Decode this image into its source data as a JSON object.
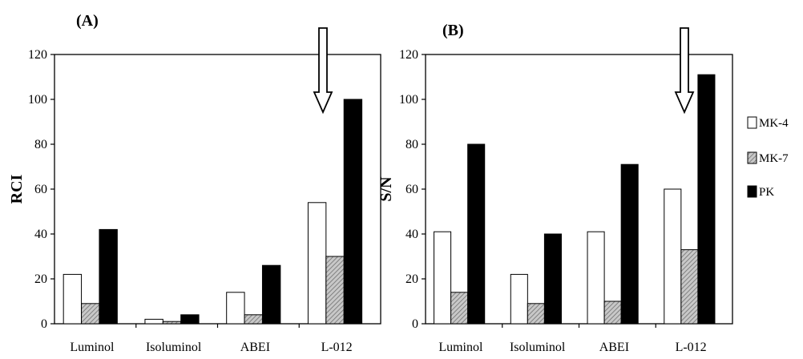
{
  "chart_data": [
    {
      "type": "bar",
      "panel_label": "(A)",
      "ylabel": "RCI",
      "xlabel": "",
      "ylim": [
        0,
        120
      ],
      "yticks": [
        "0",
        "20",
        "40",
        "60",
        "80",
        "100",
        "120"
      ],
      "categories": [
        "Luminol",
        "Isoluminol",
        "ABEI",
        "L-012"
      ],
      "series": [
        {
          "name": "MK-4",
          "values": [
            22,
            2,
            14,
            54
          ]
        },
        {
          "name": "MK-7",
          "values": [
            9,
            1,
            4,
            30
          ]
        },
        {
          "name": "PK",
          "values": [
            42,
            4,
            26,
            100
          ]
        }
      ],
      "annotation": "arrow pointing down at L-012",
      "grid": false
    },
    {
      "type": "bar",
      "panel_label": "(B)",
      "ylabel": "S/N",
      "xlabel": "",
      "ylim": [
        0,
        120
      ],
      "yticks": [
        "0",
        "20",
        "40",
        "60",
        "80",
        "100",
        "120"
      ],
      "categories": [
        "Luminol",
        "Isoluminol",
        "ABEI",
        "L-012"
      ],
      "series": [
        {
          "name": "MK-4",
          "values": [
            41,
            22,
            41,
            60
          ]
        },
        {
          "name": "MK-7",
          "values": [
            14,
            9,
            10,
            33
          ]
        },
        {
          "name": "PK",
          "values": [
            80,
            40,
            71,
            111
          ]
        }
      ],
      "annotation": "arrow pointing down at L-012",
      "grid": false
    }
  ],
  "legend": {
    "placement": "right",
    "items": [
      {
        "label": "MK-4",
        "style": "white"
      },
      {
        "label": "MK-7",
        "style": "hatched-gray"
      },
      {
        "label": "PK",
        "style": "black"
      }
    ]
  },
  "colors": {
    "MK-4": "#ffffff",
    "MK-7": "#a8a8a8",
    "PK": "#000000",
    "stroke": "#000000"
  }
}
